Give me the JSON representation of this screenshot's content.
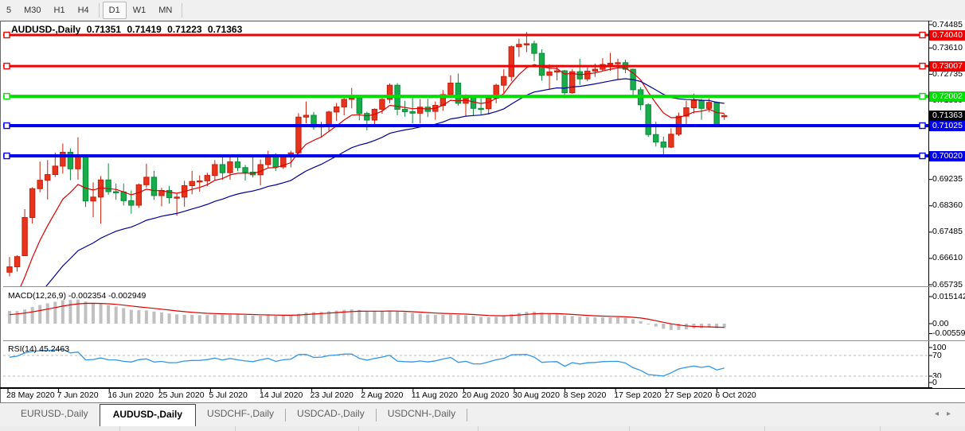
{
  "toolbar": {
    "buttons": [
      {
        "label": "5",
        "active": false,
        "sep_after": false
      },
      {
        "label": "M30",
        "active": false,
        "sep_after": false
      },
      {
        "label": "H1",
        "active": false,
        "sep_after": false
      },
      {
        "label": "H4",
        "active": false,
        "sep_after": true
      },
      {
        "label": "D1",
        "active": true,
        "sep_after": false
      },
      {
        "label": "W1",
        "active": false,
        "sep_after": false
      },
      {
        "label": "MN",
        "active": false,
        "sep_after": true
      }
    ]
  },
  "chart": {
    "symbol": "AUDUSD-,Daily",
    "ohlc": {
      "open": "0.71351",
      "high": "0.71419",
      "low": "0.71223",
      "close": "0.71363"
    }
  },
  "chart_data": {
    "type": "candlestick",
    "symbol": "AUDUSD",
    "timeframe": "Daily",
    "ylim": [
      0.656,
      0.7465
    ],
    "grid": false,
    "price_axis_ticks": [
      "0.74485",
      "0.73610",
      "0.72735",
      "0.71860",
      "0.69235",
      "0.68360",
      "0.67485",
      "0.66610",
      "0.65735"
    ],
    "x_date_ticks": [
      "28 May 2020",
      "7 Jun 2020",
      "16 Jun 2020",
      "25 Jun 2020",
      "5 Jul 2020",
      "14 Jul 2020",
      "23 Jul 2020",
      "2 Aug 2020",
      "11 Aug 2020",
      "20 Aug 2020",
      "30 Aug 2020",
      "8 Sep 2020",
      "17 Sep 2020",
      "27 Sep 2020",
      "6 Oct 2020"
    ],
    "hlines": [
      {
        "price": 0.7404,
        "label": "0.74040",
        "color": "#f00000",
        "width": 3
      },
      {
        "price": 0.73007,
        "label": "0.73007",
        "color": "#f00000",
        "width": 3
      },
      {
        "price": 0.72002,
        "label": "0.72002",
        "color": "#00e000",
        "width": 4
      },
      {
        "price": 0.71025,
        "label": "0.71025",
        "color": "#0000f0",
        "width": 4
      },
      {
        "price": 0.7002,
        "label": "0.70020",
        "color": "#0000f0",
        "width": 4
      }
    ],
    "current_price": {
      "price": 0.71363,
      "label": "0.71363",
      "bg": "#000000"
    },
    "candles": [
      [
        0.6615,
        0.6666,
        0.6601,
        0.6633
      ],
      [
        0.6633,
        0.6671,
        0.6617,
        0.6667
      ],
      [
        0.667,
        0.6825,
        0.667,
        0.6797
      ],
      [
        0.6797,
        0.6898,
        0.6777,
        0.6893
      ],
      [
        0.6893,
        0.6983,
        0.6881,
        0.6921
      ],
      [
        0.6921,
        0.6988,
        0.6857,
        0.694
      ],
      [
        0.694,
        0.7013,
        0.6932,
        0.6968
      ],
      [
        0.6968,
        0.7043,
        0.6943,
        0.7014
      ],
      [
        0.7014,
        0.7027,
        0.6921,
        0.6959
      ],
      [
        0.6959,
        0.7064,
        0.6923,
        0.7
      ],
      [
        0.7,
        0.7007,
        0.6832,
        0.6852
      ],
      [
        0.6852,
        0.6914,
        0.6798,
        0.6865
      ],
      [
        0.6865,
        0.6935,
        0.6777,
        0.6922
      ],
      [
        0.6922,
        0.6977,
        0.6873,
        0.6883
      ],
      [
        0.6883,
        0.691,
        0.6856,
        0.6882
      ],
      [
        0.6882,
        0.691,
        0.6837,
        0.6853
      ],
      [
        0.6853,
        0.6887,
        0.681,
        0.6838
      ],
      [
        0.6838,
        0.691,
        0.6829,
        0.6906
      ],
      [
        0.6906,
        0.6976,
        0.6896,
        0.6931
      ],
      [
        0.6931,
        0.6952,
        0.6856,
        0.687
      ],
      [
        0.687,
        0.6896,
        0.6834,
        0.6887
      ],
      [
        0.6887,
        0.6902,
        0.6843,
        0.6863
      ],
      [
        0.6863,
        0.6876,
        0.6803,
        0.6865
      ],
      [
        0.6865,
        0.6919,
        0.6833,
        0.6903
      ],
      [
        0.6903,
        0.6952,
        0.6874,
        0.6917
      ],
      [
        0.6917,
        0.6937,
        0.6883,
        0.6919
      ],
      [
        0.6919,
        0.6946,
        0.6901,
        0.6937
      ],
      [
        0.6937,
        0.6988,
        0.6921,
        0.6973
      ],
      [
        0.6973,
        0.6998,
        0.6922,
        0.6946
      ],
      [
        0.6946,
        0.6999,
        0.6923,
        0.6982
      ],
      [
        0.6982,
        0.6998,
        0.6951,
        0.6963
      ],
      [
        0.6963,
        0.6972,
        0.692,
        0.6948
      ],
      [
        0.6948,
        0.7,
        0.693,
        0.6939
      ],
      [
        0.6939,
        0.699,
        0.6904,
        0.6973
      ],
      [
        0.6973,
        0.7019,
        0.6963,
        0.7004
      ],
      [
        0.7004,
        0.7011,
        0.6952,
        0.6965
      ],
      [
        0.6965,
        0.7005,
        0.6958,
        0.6998
      ],
      [
        0.6998,
        0.7019,
        0.6964,
        0.7012
      ],
      [
        0.7012,
        0.7144,
        0.7005,
        0.7131
      ],
      [
        0.7131,
        0.7183,
        0.711,
        0.7137
      ],
      [
        0.7137,
        0.7148,
        0.7089,
        0.7098
      ],
      [
        0.7098,
        0.7115,
        0.7063,
        0.7105
      ],
      [
        0.7105,
        0.7152,
        0.7082,
        0.7148
      ],
      [
        0.7148,
        0.7178,
        0.7118,
        0.7165
      ],
      [
        0.7165,
        0.7198,
        0.7137,
        0.719
      ],
      [
        0.719,
        0.7228,
        0.716,
        0.7195
      ],
      [
        0.7195,
        0.7205,
        0.712,
        0.7143
      ],
      [
        0.7143,
        0.7149,
        0.7087,
        0.7121
      ],
      [
        0.7121,
        0.716,
        0.7101,
        0.7157
      ],
      [
        0.7157,
        0.7202,
        0.7142,
        0.719
      ],
      [
        0.719,
        0.7243,
        0.7177,
        0.7237
      ],
      [
        0.7237,
        0.7244,
        0.7137,
        0.7157
      ],
      [
        0.7157,
        0.7185,
        0.7132,
        0.7149
      ],
      [
        0.7149,
        0.7197,
        0.711,
        0.7144
      ],
      [
        0.7144,
        0.7191,
        0.711,
        0.7164
      ],
      [
        0.7164,
        0.7192,
        0.7131,
        0.715
      ],
      [
        0.715,
        0.7183,
        0.7122,
        0.717
      ],
      [
        0.717,
        0.7221,
        0.7152,
        0.7206
      ],
      [
        0.7206,
        0.727,
        0.72,
        0.7244
      ],
      [
        0.7244,
        0.7276,
        0.7169,
        0.7177
      ],
      [
        0.7177,
        0.7207,
        0.7135,
        0.7197
      ],
      [
        0.7197,
        0.7201,
        0.7136,
        0.716
      ],
      [
        0.716,
        0.7194,
        0.7137,
        0.7159
      ],
      [
        0.7159,
        0.7199,
        0.714,
        0.7194
      ],
      [
        0.7194,
        0.7242,
        0.7177,
        0.7237
      ],
      [
        0.7237,
        0.729,
        0.7211,
        0.7266
      ],
      [
        0.7266,
        0.7369,
        0.7251,
        0.7365
      ],
      [
        0.7365,
        0.7392,
        0.7331,
        0.7373
      ],
      [
        0.7373,
        0.7414,
        0.7347,
        0.7375
      ],
      [
        0.7375,
        0.7385,
        0.7317,
        0.7343
      ],
      [
        0.7343,
        0.7356,
        0.7252,
        0.727
      ],
      [
        0.727,
        0.7307,
        0.7222,
        0.7281
      ],
      [
        0.7281,
        0.7297,
        0.7253,
        0.7285
      ],
      [
        0.7285,
        0.7288,
        0.7194,
        0.7212
      ],
      [
        0.7212,
        0.729,
        0.7209,
        0.7282
      ],
      [
        0.7282,
        0.7325,
        0.7238,
        0.7258
      ],
      [
        0.7258,
        0.7296,
        0.725,
        0.7284
      ],
      [
        0.7284,
        0.7309,
        0.7265,
        0.729
      ],
      [
        0.729,
        0.7327,
        0.7283,
        0.7306
      ],
      [
        0.7306,
        0.7345,
        0.7285,
        0.731
      ],
      [
        0.731,
        0.7325,
        0.7256,
        0.7312
      ],
      [
        0.7312,
        0.7322,
        0.7277,
        0.729
      ],
      [
        0.729,
        0.7292,
        0.72,
        0.7222
      ],
      [
        0.7222,
        0.723,
        0.7154,
        0.7172
      ],
      [
        0.7172,
        0.7177,
        0.7065,
        0.7073
      ],
      [
        0.7073,
        0.7116,
        0.7033,
        0.7048
      ],
      [
        0.7048,
        0.7066,
        0.7006,
        0.7031
      ],
      [
        0.7031,
        0.7094,
        0.7028,
        0.7074
      ],
      [
        0.7074,
        0.7146,
        0.7068,
        0.7134
      ],
      [
        0.7134,
        0.7185,
        0.7102,
        0.7162
      ],
      [
        0.7162,
        0.7209,
        0.7143,
        0.7186
      ],
      [
        0.7186,
        0.7192,
        0.7122,
        0.716
      ],
      [
        0.716,
        0.7193,
        0.7148,
        0.718
      ],
      [
        0.718,
        0.7183,
        0.7097,
        0.7105
      ],
      [
        0.7135,
        0.7142,
        0.7122,
        0.7136
      ]
    ],
    "moving_averages": [
      {
        "name": "ma-fast",
        "period": 8,
        "seed": 0.647,
        "color": "#dd0000"
      },
      {
        "name": "ma-slow",
        "period": 25,
        "seed": 0.642,
        "color": "#000096"
      }
    ],
    "indicators": {
      "macd": {
        "label": "MACD(12,26,9)",
        "values_text": "-0.002354 -0.002949",
        "axis_ticks": [
          {
            "label": "0.015142",
            "v": 0.015142
          },
          {
            "label": "0.00",
            "v": 0.0
          },
          {
            "label": "-0.005595",
            "v": -0.005595
          }
        ],
        "hist_color": "#c0c0c0",
        "signal_color": "#dd0000"
      },
      "rsi": {
        "label": "RSI(14)",
        "value_text": "45.2463",
        "axis_ticks": [
          100,
          70,
          30,
          0
        ],
        "levels": [
          70,
          30
        ],
        "line_color": "#2f96e8"
      }
    },
    "colors": {
      "up": "#e8341c",
      "up_border": "#c81e0a",
      "down": "#16ad4a",
      "down_border": "#0c8a38"
    }
  },
  "tabs": {
    "items": [
      {
        "label": "EURUSD-,Daily",
        "active": false
      },
      {
        "label": "AUDUSD-,Daily",
        "active": true
      },
      {
        "label": "USDCHF-,Daily",
        "active": false
      },
      {
        "label": "USDCAD-,Daily",
        "active": false
      },
      {
        "label": "USDCNH-,Daily",
        "active": false
      }
    ],
    "scroll_left_icon": "◂",
    "scroll_right_icon": "▸"
  }
}
